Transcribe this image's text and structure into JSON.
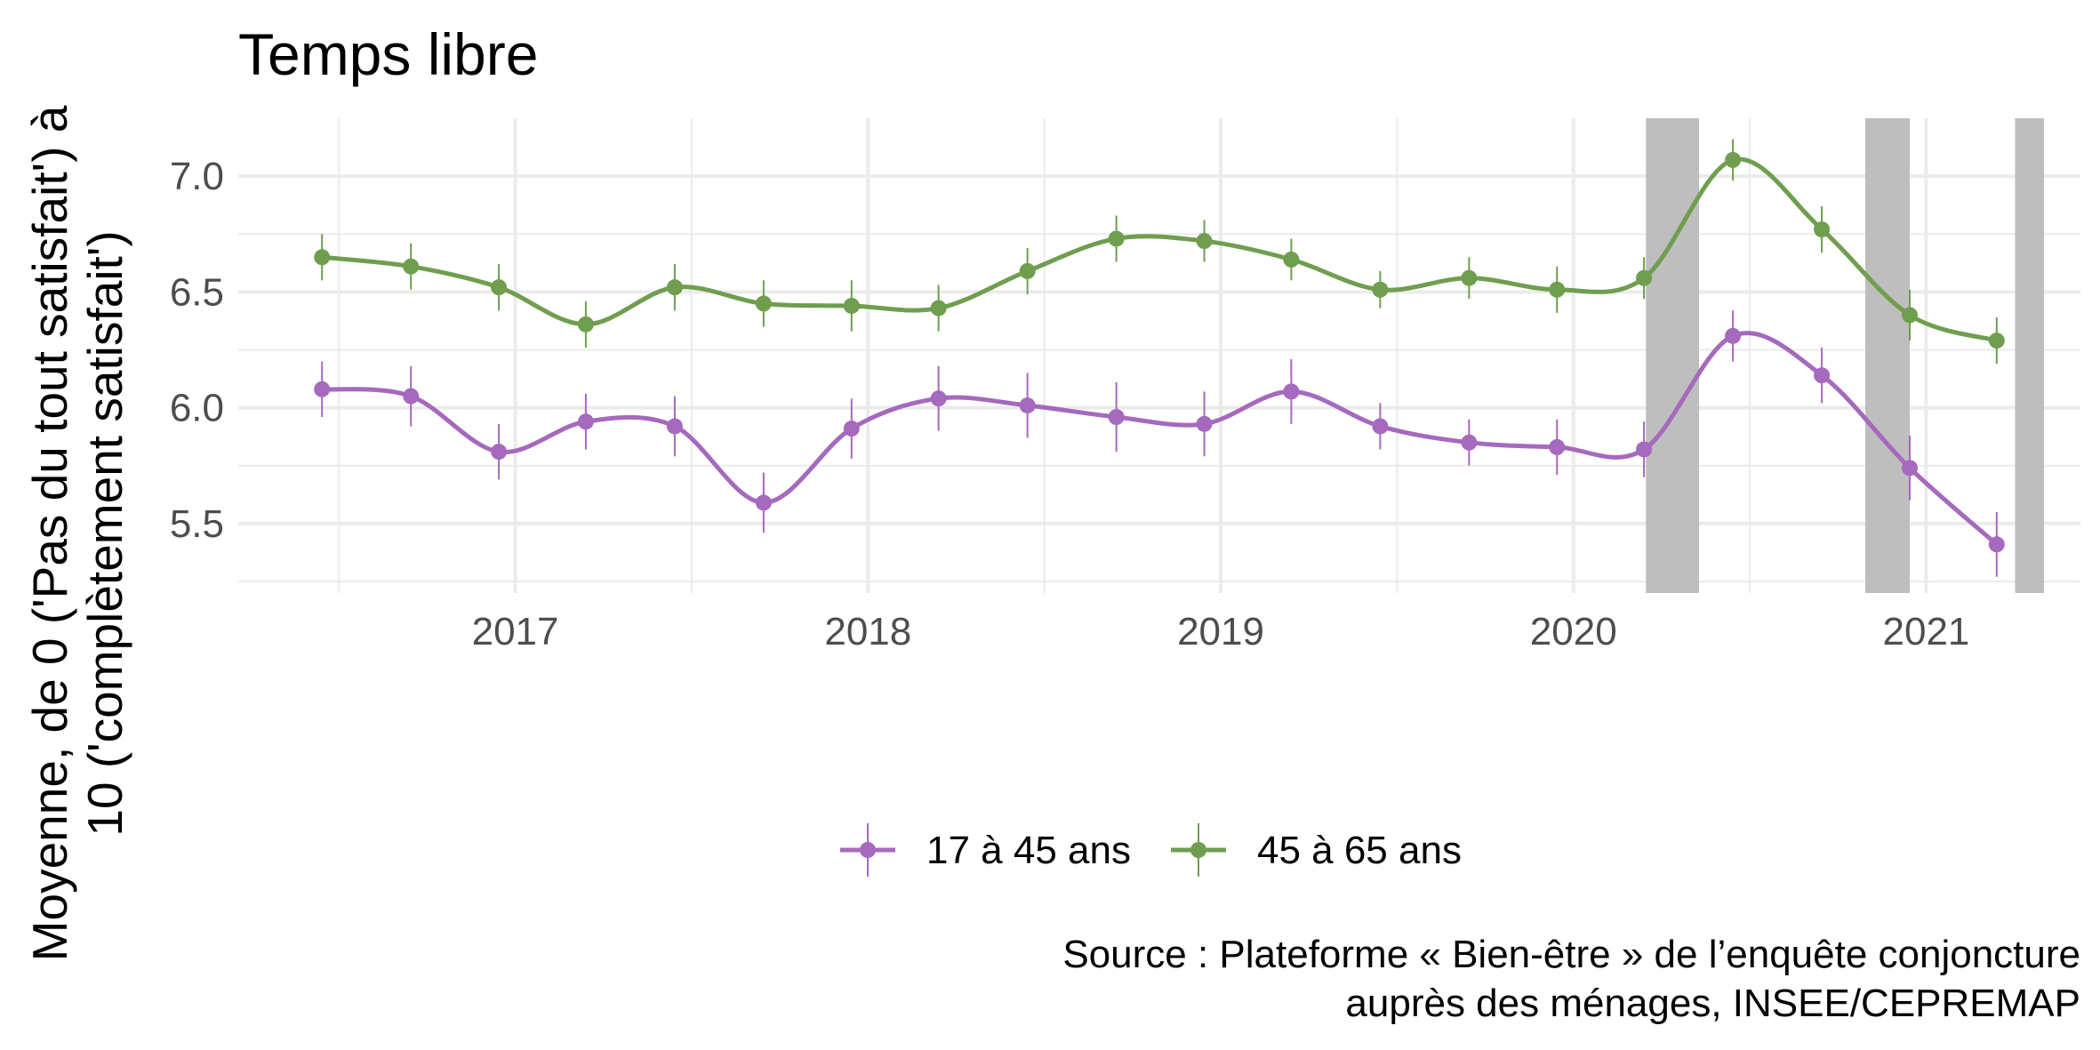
{
  "chart_data": {
    "type": "line",
    "title": "Temps libre",
    "ylabel_lines": [
      "Moyenne, de 0 ('Pas du tout satisfait') à",
      "10 ('complètement satisfait')"
    ],
    "xlabel": "",
    "x_ticks": [
      "2017",
      "2018",
      "2019",
      "2020",
      "2021"
    ],
    "y_ticks": [
      "5.5",
      "6.0",
      "6.5",
      "7.0"
    ],
    "ylim": [
      5.2,
      7.25
    ],
    "x": [
      "2016-06",
      "2016-09",
      "2016-12",
      "2017-03",
      "2017-06",
      "2017-09",
      "2017-12",
      "2018-03",
      "2018-06",
      "2018-09",
      "2018-12",
      "2019-03",
      "2019-06",
      "2019-09",
      "2019-12",
      "2020-03",
      "2020-06",
      "2020-09",
      "2020-12",
      "2021-03"
    ],
    "series": [
      {
        "name": "17 à 45 ans",
        "color": "#a569bd",
        "values": [
          6.08,
          6.05,
          5.81,
          5.94,
          5.92,
          5.59,
          5.91,
          6.04,
          6.01,
          5.96,
          5.93,
          6.07,
          5.92,
          5.85,
          5.83,
          5.82,
          6.31,
          6.14,
          5.74,
          5.41
        ],
        "error": [
          0.12,
          0.13,
          0.12,
          0.12,
          0.13,
          0.13,
          0.13,
          0.14,
          0.14,
          0.15,
          0.14,
          0.14,
          0.1,
          0.1,
          0.12,
          0.12,
          0.11,
          0.12,
          0.14,
          0.14
        ]
      },
      {
        "name": "45 à 65 ans",
        "color": "#6f9e4f",
        "values": [
          6.65,
          6.61,
          6.52,
          6.36,
          6.52,
          6.45,
          6.44,
          6.43,
          6.59,
          6.73,
          6.72,
          6.64,
          6.51,
          6.56,
          6.51,
          6.56,
          7.07,
          6.77,
          6.4,
          6.29
        ],
        "error": [
          0.1,
          0.1,
          0.1,
          0.1,
          0.1,
          0.1,
          0.11,
          0.1,
          0.1,
          0.1,
          0.09,
          0.09,
          0.08,
          0.09,
          0.1,
          0.09,
          0.09,
          0.1,
          0.11,
          0.1
        ]
      }
    ],
    "shaded_periods": [
      [
        "2020-03-17",
        "2020-05-11"
      ],
      [
        "2020-10-30",
        "2020-12-15"
      ],
      [
        "2021-04-03",
        "2021-05-03"
      ]
    ],
    "shade_color": "#bebebe",
    "grid": true,
    "legend_position": "bottom",
    "caption_lines": [
      "Source : Plateforme « Bien-être » de l’enquête conjoncture",
      "auprès des ménages, INSEE/CEPREMAP"
    ]
  }
}
